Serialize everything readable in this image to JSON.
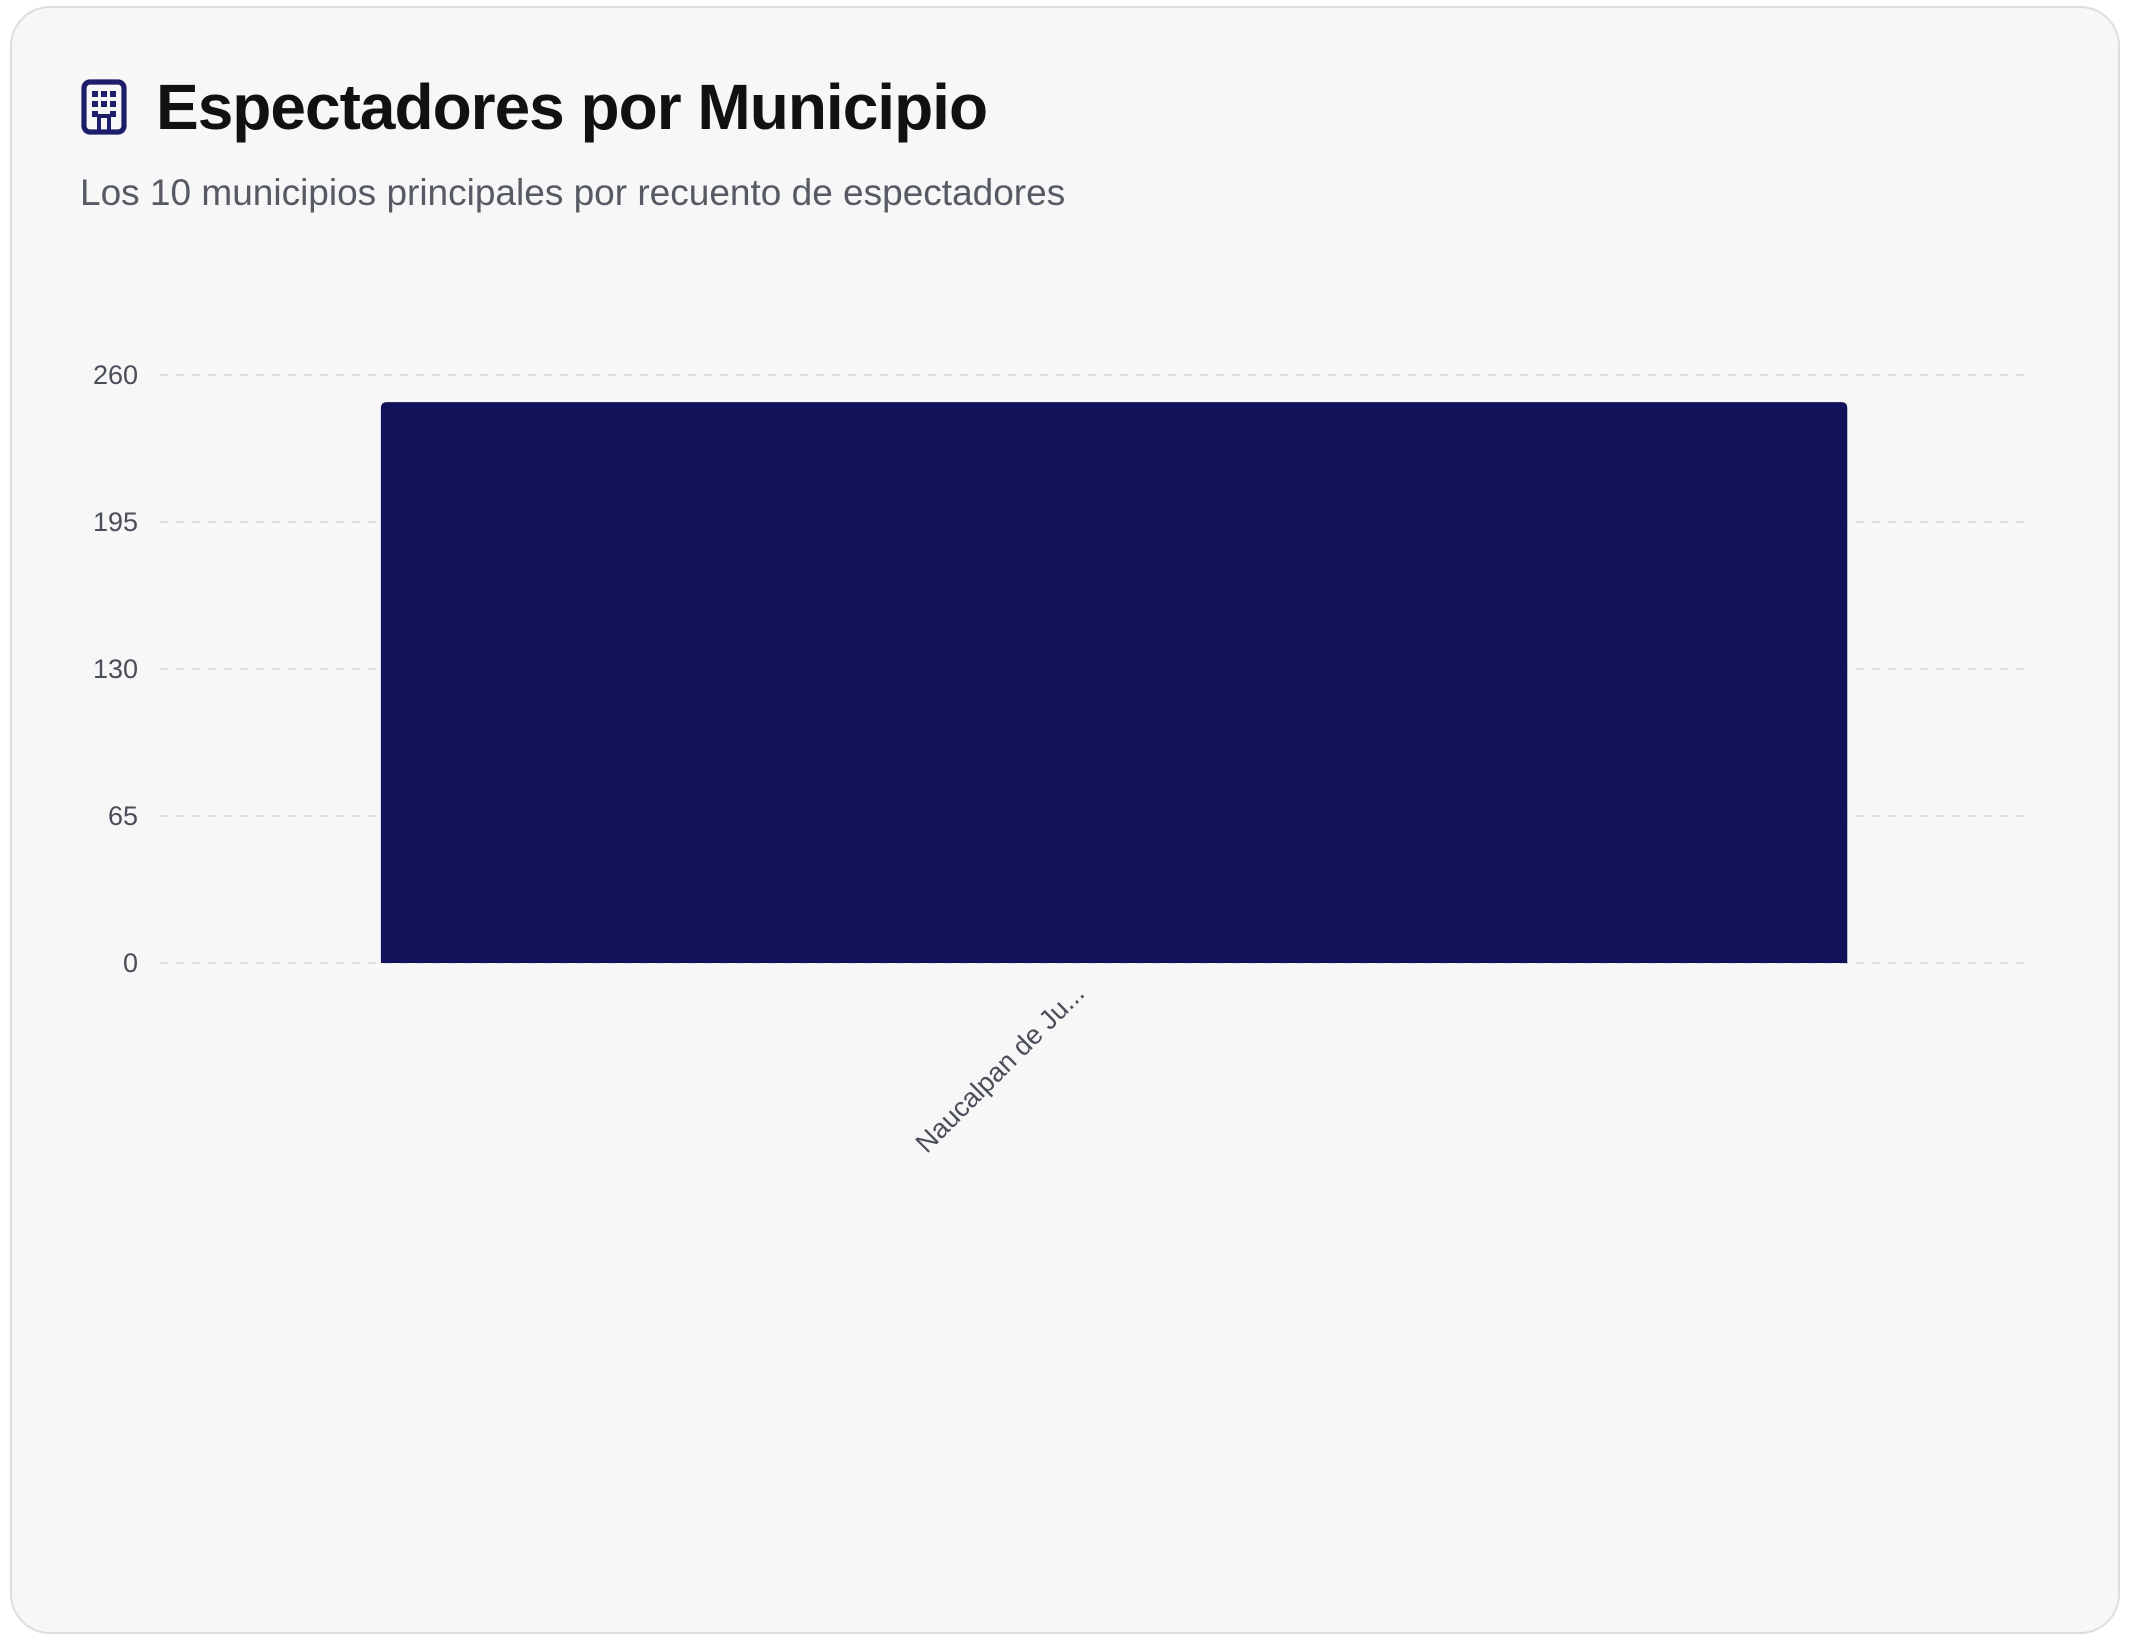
{
  "header": {
    "title": "Espectadores por Municipio",
    "subtitle": "Los 10 municipios principales por recuento de espectadores",
    "icon": "building-icon"
  },
  "colors": {
    "bar": "#12125b",
    "grid": "#dddde3",
    "icon": "#1d1d6b"
  },
  "chart_data": {
    "type": "bar",
    "categories": [
      "Naucalpan de Ju..."
    ],
    "values": [
      248
    ],
    "title": "Espectadores por Municipio",
    "xlabel": "",
    "ylabel": "",
    "ylim": [
      0,
      260
    ],
    "yticks": [
      0,
      65,
      130,
      195,
      260
    ],
    "grid": true,
    "legend": "none"
  }
}
